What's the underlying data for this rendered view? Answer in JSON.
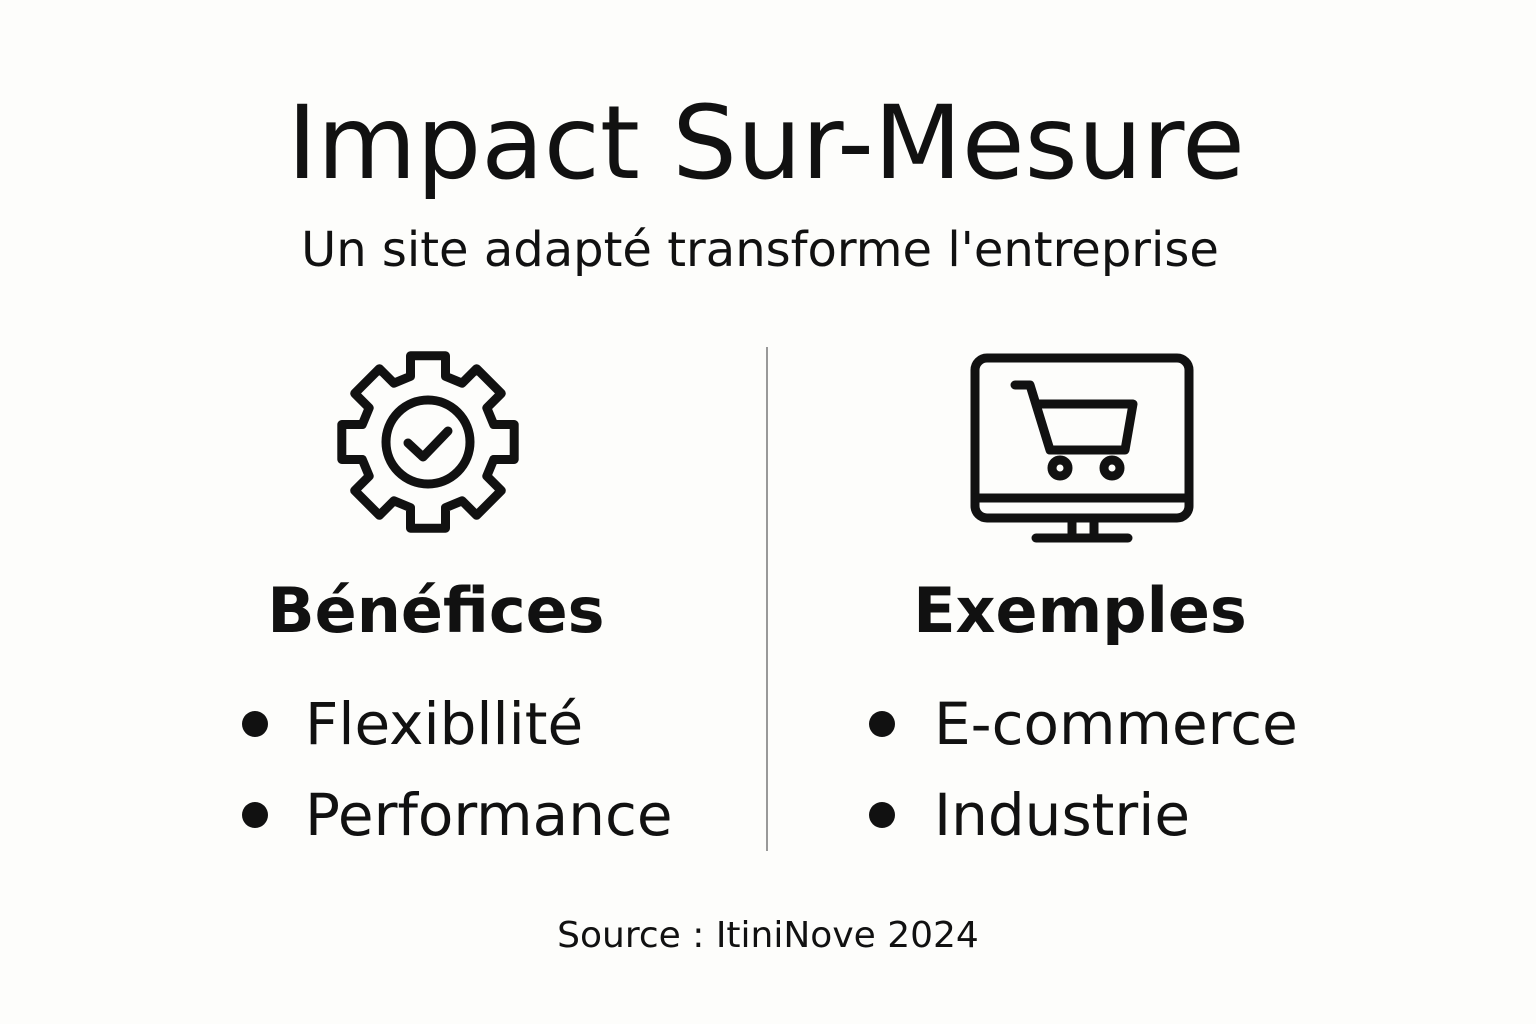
{
  "header": {
    "title": "Impact Sur-Mesure",
    "subtitle": "Un site adapté transforme l'entreprise"
  },
  "columns": [
    {
      "heading": "Bénéfices",
      "items": [
        "Flexibllité",
        "Performance"
      ]
    },
    {
      "heading": "Exemples",
      "items": [
        "E-commerce",
        "Industrie"
      ]
    }
  ],
  "footer": {
    "source": "Source : ItiniNove 2024"
  }
}
